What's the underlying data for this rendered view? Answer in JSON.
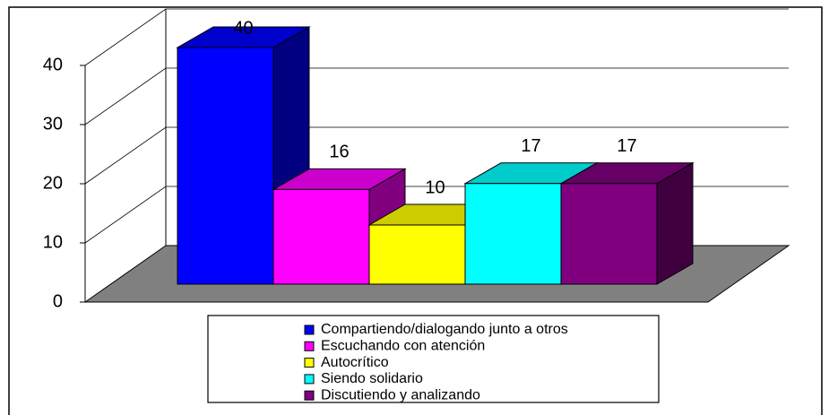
{
  "chart_data": {
    "type": "bar3d",
    "series": [
      {
        "name": "Compartiendo/dialogando junto a otros",
        "color": "#0000ff",
        "values": [
          40
        ]
      },
      {
        "name": "Escuchando con atención",
        "color": "#ff00ff",
        "values": [
          16
        ]
      },
      {
        "name": "Autocrítico",
        "color": "#ffff00",
        "values": [
          10
        ]
      },
      {
        "name": "Siendo solidario",
        "color": "#00ffff",
        "values": [
          17
        ]
      },
      {
        "name": "Discutiendo y analizando",
        "color": "#800080",
        "values": [
          17
        ]
      }
    ],
    "ylim": [
      0,
      40
    ],
    "yticks": [
      0,
      10,
      20,
      30,
      40
    ],
    "grid": true,
    "legend": "bottom"
  }
}
